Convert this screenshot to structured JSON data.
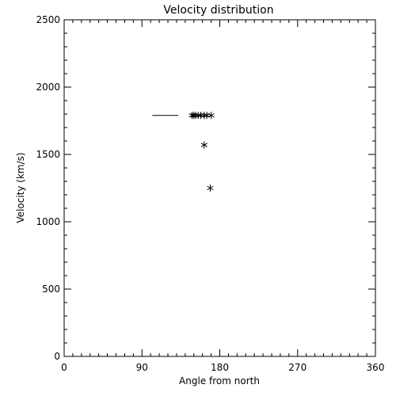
{
  "chart_data": {
    "type": "scatter",
    "title": "Velocity distribution",
    "xlabel": "Angle from north",
    "ylabel": "Velocity (km/s)",
    "xlim": [
      0,
      360
    ],
    "ylim": [
      0,
      2500
    ],
    "xticks": [
      0,
      90,
      180,
      270,
      360
    ],
    "yticks": [
      0,
      500,
      1000,
      1500,
      2000,
      2500
    ],
    "x_minor_step": 10,
    "y_minor_step": 100,
    "grid": false,
    "marker": "asterisk",
    "points": [
      {
        "x": 148,
        "y": 1790
      },
      {
        "x": 150,
        "y": 1790
      },
      {
        "x": 152,
        "y": 1790
      },
      {
        "x": 155,
        "y": 1790
      },
      {
        "x": 158,
        "y": 1790
      },
      {
        "x": 162,
        "y": 1790
      },
      {
        "x": 165,
        "y": 1790
      },
      {
        "x": 170,
        "y": 1790
      },
      {
        "x": 162,
        "y": 1570
      },
      {
        "x": 169,
        "y": 1250
      }
    ],
    "segments": [
      {
        "x0": 102,
        "x1": 132,
        "y": 1790
      }
    ]
  }
}
